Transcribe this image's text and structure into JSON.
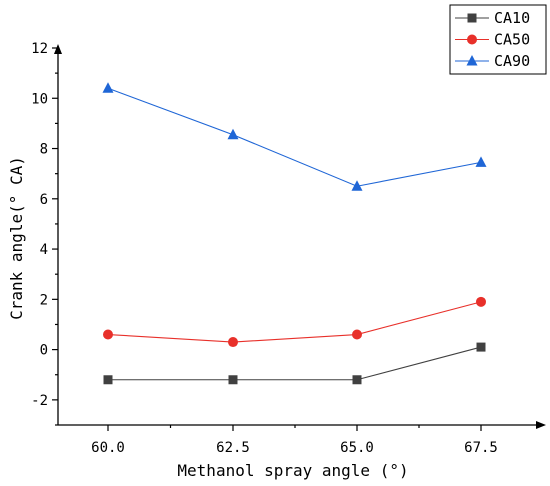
{
  "chart_data": {
    "type": "line",
    "categories": [
      "60.0",
      "62.5",
      "65.0",
      "67.5"
    ],
    "xlabel": "Methanol spray angle (°)",
    "ylabel": "Crank angle(° CA)",
    "ylim": [
      -3,
      12
    ],
    "yticks": [
      -2,
      0,
      2,
      4,
      6,
      8,
      10,
      12
    ],
    "legend_position": "top-right",
    "series": [
      {
        "name": "CA10",
        "color": "#404040",
        "marker": "square",
        "values": [
          -1.2,
          -1.2,
          -1.2,
          0.1
        ]
      },
      {
        "name": "CA50",
        "color": "#e8302a",
        "marker": "circle",
        "values": [
          0.6,
          0.3,
          0.6,
          1.9
        ]
      },
      {
        "name": "CA90",
        "color": "#1f66d6",
        "marker": "triangle",
        "values": [
          10.4,
          8.55,
          6.5,
          7.45
        ]
      }
    ]
  }
}
